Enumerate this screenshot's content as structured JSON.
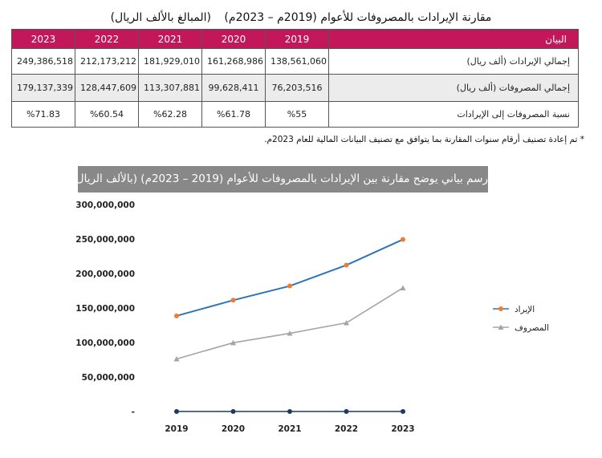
{
  "title": {
    "main": "مقارنة الإيرادات بالمصروفات للأعوام (2019م – 2023م)",
    "unit": "(المبالغ بالألف الريال)"
  },
  "table": {
    "label_header": "البيان",
    "years": [
      "2023",
      "2022",
      "2021",
      "2020",
      "2019"
    ],
    "rows": [
      {
        "label": "إجمالي الإيرادات (ألف ريال)",
        "values": [
          "249,386,518",
          "212,173,212",
          "181,929,010",
          "161,268,986",
          "138,561,060"
        ]
      },
      {
        "label": "إجمالي المصروفات (ألف ريال)",
        "values": [
          "179,137,339",
          "128,447,609",
          "113,307,881",
          "99,628,411",
          "76,203,516"
        ]
      },
      {
        "label": "نسبة المصروفات إلى الإيرادات",
        "values": [
          "%71.83",
          "%60.54",
          "%62.28",
          "%61.78",
          "%55"
        ]
      }
    ]
  },
  "footnote": "* تم إعادة تصنيف أرقام سنوات المقارنة بما يتوافق مع تصنيف البيانات المالية للعام 2023م.",
  "chart_banner": "رسم بياني يوضح مقارنة بين الإيرادات بالمصروفات للأعوام (2019 – 2023م) (بالألف الريال)",
  "colors": {
    "header_bg": "#c2185b",
    "revenue_line": "#2e75b6",
    "revenue_marker": "#ed7d31",
    "expense_line": "#a5a5a5",
    "baseline_series": "#1f3864"
  },
  "chart_data": {
    "type": "line",
    "categories": [
      "2019",
      "2020",
      "2021",
      "2022",
      "2023"
    ],
    "ylim": [
      0,
      300000000
    ],
    "yticks": [
      0,
      50000000,
      100000000,
      150000000,
      200000000,
      250000000,
      300000000
    ],
    "ytick_labels": [
      "-",
      "50,000,000",
      "100,000,000",
      "150,000,000",
      "200,000,000",
      "250,000,000",
      "300,000,000"
    ],
    "series": [
      {
        "name": "الإيراد",
        "values": [
          138561060,
          161268986,
          181929010,
          212173212,
          249386518
        ]
      },
      {
        "name": "المصروف",
        "values": [
          76203516,
          99628411,
          113307881,
          128447609,
          179137339
        ]
      },
      {
        "name": "",
        "values": [
          0,
          0,
          0,
          0,
          0
        ]
      }
    ],
    "grid": false,
    "legend": "right"
  }
}
